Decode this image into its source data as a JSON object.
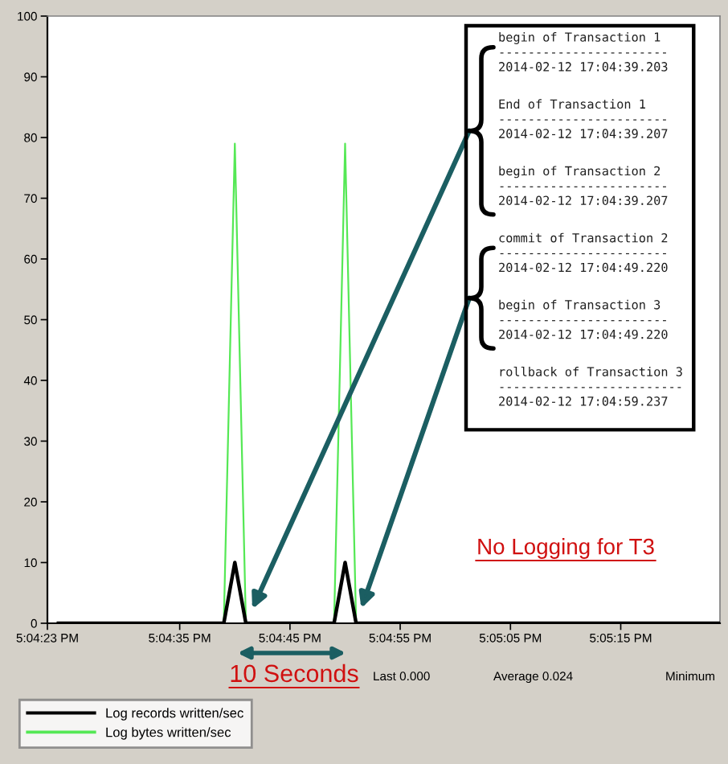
{
  "chart_data": {
    "type": "line",
    "x": [
      17.073333,
      17.0775,
      17.077778,
      17.078056,
      17.080278,
      17.080556,
      17.080833,
      17.09
    ],
    "series": [
      {
        "name": "Log records written/sec",
        "color": "#000000",
        "values": [
          0,
          0,
          10,
          0,
          0,
          10,
          0,
          0
        ]
      },
      {
        "name": "Log bytes written/sec",
        "color": "#55e855",
        "values": [
          0,
          0,
          79,
          0,
          0,
          79,
          0,
          0
        ]
      }
    ],
    "xlim": [
      17.073056,
      17.09
    ],
    "xticks": [
      {
        "value": 17.073056,
        "label": "5:04:23 PM"
      },
      {
        "value": 17.076389,
        "label": "5:04:35 PM"
      },
      {
        "value": 17.079167,
        "label": "5:04:45 PM"
      },
      {
        "value": 17.081944,
        "label": "5:04:55 PM"
      },
      {
        "value": 17.084722,
        "label": "5:05:05 PM"
      },
      {
        "value": 17.0875,
        "label": "5:05:15 PM"
      }
    ],
    "ylim": [
      0,
      100
    ],
    "yticks": [
      0,
      10,
      20,
      30,
      40,
      50,
      60,
      70,
      80,
      90,
      100
    ],
    "grid": false,
    "legend": "bottom",
    "line_style": "solid",
    "annotations": [
      "begin of Transaction 1\n-----------------------\n2014-02-12 17:04:39.203",
      "End of Transaction 1\n-----------------------\n2014-02-12 17:04:39.207",
      "begin of Transaction 2\n-----------------------\n2014-02-12 17:04:39.207",
      "commit of Transaction 2\n-----------------------\n2014-02-12 17:04:49.220",
      "begin of Transaction 3\n-----------------------\n2014-02-12 17:04:49.220",
      "rollback of Transaction 3\n-------------------------\n2014-02-12 17:04:59.237",
      "No Logging for T3",
      "10 Seconds",
      "Last 0.000",
      "Average 0.024",
      "Minimum"
    ]
  }
}
